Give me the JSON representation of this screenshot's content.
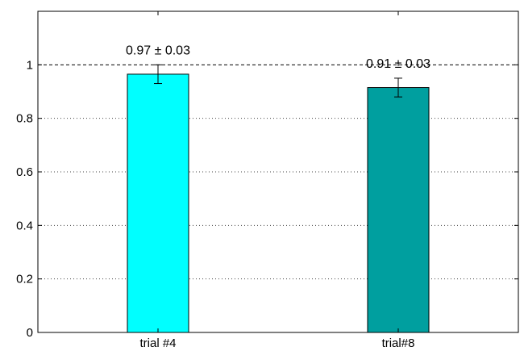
{
  "chart_data": {
    "type": "bar",
    "categories": [
      "trial #4",
      "trial#8"
    ],
    "series": [
      {
        "values": [
          0.965,
          0.915
        ],
        "errors": [
          0.035,
          0.035
        ],
        "colors": [
          "#00ffff",
          "#009f9f"
        ],
        "labels": [
          "0.97 ± 0.03",
          "0.91 ± 0.03"
        ]
      }
    ],
    "title": "",
    "xlabel": "",
    "ylabel": "",
    "ylim": [
      0,
      1.2
    ],
    "yticks": [
      0,
      0.2,
      0.4,
      0.6,
      0.8,
      1
    ],
    "ytick_labels": [
      "0",
      "0.2",
      "0.4",
      "0.6",
      "0.8",
      "1"
    ],
    "reference_line": 1,
    "grid": "horizontal dotted",
    "legend": "none"
  }
}
